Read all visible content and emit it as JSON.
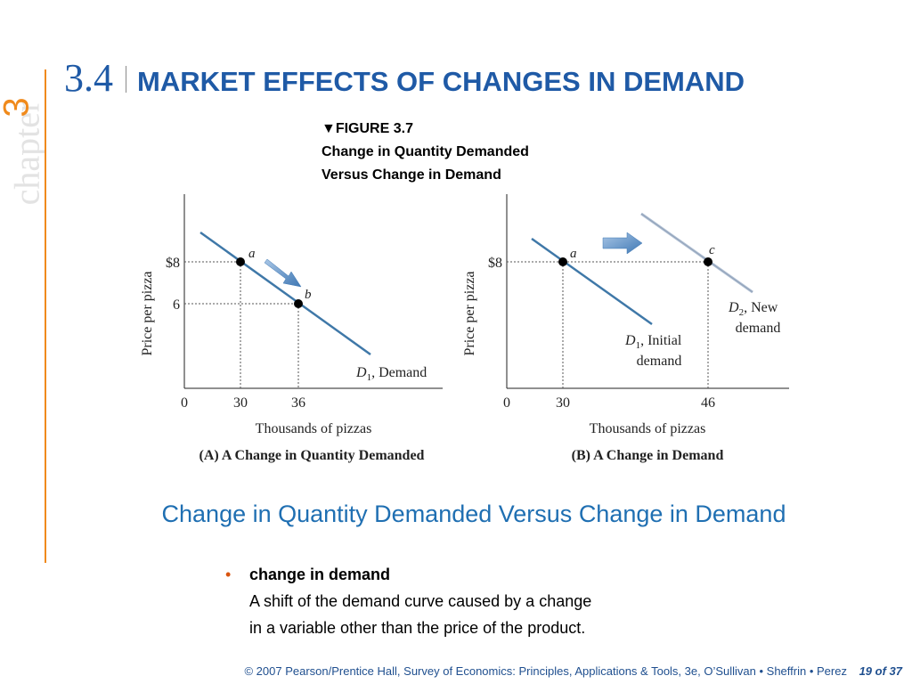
{
  "sidebar": {
    "chapter_word": "chapter",
    "chapter_number": "3"
  },
  "header": {
    "section_number": "3.4",
    "title": "MARKET EFFECTS OF CHANGES IN DEMAND"
  },
  "figure": {
    "label": "▼FIGURE 3.7",
    "caption_line1": "Change in Quantity Demanded",
    "caption_line2": "Versus Change in Demand"
  },
  "chart_data": [
    {
      "type": "line",
      "title": "(A) A Change in Quantity Demanded",
      "xlabel": "Thousands of pizzas",
      "ylabel": "Price per pizza",
      "x_ticks": [
        "0",
        "30",
        "36"
      ],
      "y_ticks": [
        "$8",
        "6"
      ],
      "series": [
        {
          "name": "D1, Demand",
          "label_main": "D",
          "label_sub": "1",
          "label_rest": ", Demand",
          "color": "#3f78a8"
        }
      ],
      "points": [
        {
          "label": "a",
          "x": 30,
          "y": 8
        },
        {
          "label": "b",
          "x": 36,
          "y": 6
        }
      ],
      "arrow": "from a to b along curve"
    },
    {
      "type": "line",
      "title": "(B) A Change in Demand",
      "xlabel": "Thousands of pizzas",
      "ylabel": "Price per pizza",
      "x_ticks": [
        "0",
        "30",
        "46"
      ],
      "y_ticks": [
        "$8"
      ],
      "series": [
        {
          "name": "D1, Initial demand",
          "label_main": "D",
          "label_sub": "1",
          "label_rest": ", Initial",
          "label_line2": "demand",
          "color": "#3f78a8"
        },
        {
          "name": "D2, New demand",
          "label_main": "D",
          "label_sub": "2",
          "label_rest": ", New",
          "label_line2": "demand",
          "color": "#b0bfd3"
        }
      ],
      "points": [
        {
          "label": "a",
          "x": 30,
          "y": 8
        },
        {
          "label": "c",
          "x": 46,
          "y": 8
        }
      ],
      "arrow": "rightward shift"
    }
  ],
  "main": {
    "subtitle": "Change in Quantity Demanded Versus Change in Demand",
    "bullet": {
      "term": "change in demand",
      "definition_line1": "A shift of the demand curve caused by a change",
      "definition_line2": "in a variable other than the price of the product."
    }
  },
  "footer": {
    "credit": "© 2007 Pearson/Prentice Hall, Survey of Economics: Principles, Applications & Tools, 3e, O’Sullivan • Sheffrin • Perez",
    "page": "19 of 37"
  },
  "colors": {
    "accent_blue": "#1f5aa6",
    "accent_orange": "#f08a1c",
    "curve_blue": "#3f78a8",
    "new_curve": "#b0bfd3"
  }
}
